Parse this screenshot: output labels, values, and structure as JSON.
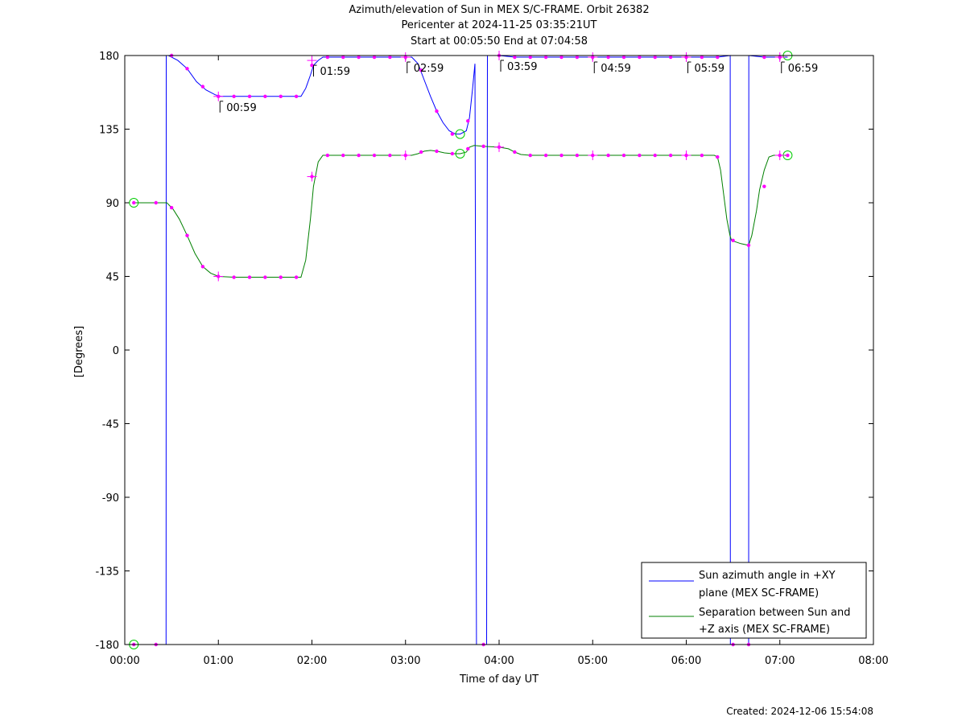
{
  "chart_data": {
    "type": "line",
    "title": "Azimuth/elevation of Sun in MEX S/C-FRAME.  Orbit 26382",
    "subtitle_1": "Pericenter at 2024-11-25 03:35:21UT",
    "subtitle_2": "Start at 00:05:50 End at 07:04:58",
    "xlabel": "Time of day UT",
    "ylabel": "[Degrees]",
    "xlim": [
      0,
      480
    ],
    "ylim": [
      -180,
      180
    ],
    "x_unit": "minutes after 00:00 UT",
    "xticks": [
      {
        "v": 0,
        "label": "00:00"
      },
      {
        "v": 60,
        "label": "01:00"
      },
      {
        "v": 120,
        "label": "02:00"
      },
      {
        "v": 180,
        "label": "03:00"
      },
      {
        "v": 240,
        "label": "04:00"
      },
      {
        "v": 300,
        "label": "05:00"
      },
      {
        "v": 360,
        "label": "06:00"
      },
      {
        "v": 420,
        "label": "07:00"
      },
      {
        "v": 480,
        "label": "08:00"
      }
    ],
    "yticks": [
      {
        "v": 180,
        "label": "180"
      },
      {
        "v": 135,
        "label": "135"
      },
      {
        "v": 90,
        "label": "90"
      },
      {
        "v": 45,
        "label": "45"
      },
      {
        "v": 0,
        "label": "0"
      },
      {
        "v": -45,
        "label": "-45"
      },
      {
        "v": -90,
        "label": "-90"
      },
      {
        "v": -135,
        "label": "-135"
      },
      {
        "v": -180,
        "label": "-180"
      }
    ],
    "legend_position": "bottom-right",
    "series": [
      {
        "name": "Sun azimuth angle in +XY plane (MEX SC-FRAME)",
        "name_line1": "Sun azimuth angle in +XY",
        "name_line2": "plane (MEX SC-FRAME)",
        "color": "#0000ff",
        "points": [
          [
            5.8,
            -180
          ],
          [
            25,
            -180
          ],
          [
            26.5,
            -180
          ],
          [
            26.6,
            180
          ],
          [
            28,
            180
          ],
          [
            34,
            177
          ],
          [
            40,
            172
          ],
          [
            46,
            164
          ],
          [
            52,
            159
          ],
          [
            58,
            156
          ],
          [
            62,
            155
          ],
          [
            70,
            155
          ],
          [
            80,
            155
          ],
          [
            90,
            155
          ],
          [
            100,
            155
          ],
          [
            110,
            155
          ],
          [
            113,
            155
          ],
          [
            116,
            160
          ],
          [
            119,
            168
          ],
          [
            121,
            174
          ],
          [
            124,
            177
          ],
          [
            127,
            179
          ],
          [
            132,
            179
          ],
          [
            140,
            179
          ],
          [
            150,
            179
          ],
          [
            160,
            179
          ],
          [
            170,
            179
          ],
          [
            180,
            179
          ],
          [
            184,
            179
          ],
          [
            188,
            175
          ],
          [
            192,
            165
          ],
          [
            196,
            155
          ],
          [
            200,
            146
          ],
          [
            204,
            139
          ],
          [
            208,
            134
          ],
          [
            212,
            132
          ],
          [
            215,
            132
          ],
          [
            219,
            134
          ],
          [
            221,
            142
          ],
          [
            223,
            160
          ],
          [
            224.5,
            175
          ],
          [
            225.5,
            -180
          ],
          [
            232,
            -180
          ],
          [
            232.5,
            180
          ],
          [
            239,
            180
          ],
          [
            240,
            180
          ],
          [
            250,
            179
          ],
          [
            260,
            179
          ],
          [
            270,
            179
          ],
          [
            280,
            179
          ],
          [
            290,
            179
          ],
          [
            300,
            179
          ],
          [
            310,
            179
          ],
          [
            320,
            179
          ],
          [
            330,
            179
          ],
          [
            340,
            179
          ],
          [
            350,
            179
          ],
          [
            360,
            179
          ],
          [
            370,
            179
          ],
          [
            378,
            179
          ],
          [
            380,
            179
          ],
          [
            388.2,
            180
          ],
          [
            388.3,
            -180
          ],
          [
            400,
            -180
          ],
          [
            400.1,
            180
          ],
          [
            410,
            179
          ],
          [
            420,
            179
          ],
          [
            425,
            179
          ]
        ],
        "markers": [
          [
            5.8,
            -180
          ],
          [
            20,
            -180
          ],
          [
            30,
            180
          ],
          [
            40,
            172
          ],
          [
            50,
            161
          ],
          [
            60,
            155
          ],
          [
            70,
            155
          ],
          [
            80,
            155
          ],
          [
            90,
            155
          ],
          [
            100,
            155
          ],
          [
            110,
            155
          ],
          [
            120,
            174
          ],
          [
            130,
            179
          ],
          [
            140,
            179
          ],
          [
            150,
            179
          ],
          [
            160,
            179
          ],
          [
            170,
            179
          ],
          [
            180,
            179
          ],
          [
            190,
            171
          ],
          [
            200,
            146
          ],
          [
            210,
            132
          ],
          [
            220,
            140
          ],
          [
            230,
            -180
          ],
          [
            240,
            180
          ],
          [
            250,
            179
          ],
          [
            260,
            179
          ],
          [
            270,
            179
          ],
          [
            280,
            179
          ],
          [
            290,
            179
          ],
          [
            300,
            179
          ],
          [
            310,
            179
          ],
          [
            320,
            179
          ],
          [
            330,
            179
          ],
          [
            340,
            179
          ],
          [
            350,
            179
          ],
          [
            360,
            179
          ],
          [
            370,
            179
          ],
          [
            380,
            179
          ],
          [
            390,
            -180
          ],
          [
            400,
            -180
          ],
          [
            410,
            179
          ],
          [
            420,
            179
          ]
        ],
        "circles": [
          [
            5.8,
            -180
          ],
          [
            215,
            132
          ],
          [
            425,
            180
          ]
        ]
      },
      {
        "name": "Separation between Sun and +Z axis (MEX SC-FRAME)",
        "name_line1": "Separation between Sun and",
        "name_line2": "+Z axis (MEX SC-FRAME)",
        "color": "#008000",
        "points": [
          [
            5.8,
            90
          ],
          [
            20,
            90
          ],
          [
            27,
            90
          ],
          [
            31,
            86
          ],
          [
            35,
            80
          ],
          [
            40,
            70
          ],
          [
            45,
            59
          ],
          [
            50,
            51
          ],
          [
            55,
            47
          ],
          [
            60,
            45
          ],
          [
            70,
            44.5
          ],
          [
            80,
            44.5
          ],
          [
            90,
            44.5
          ],
          [
            100,
            44.5
          ],
          [
            110,
            44.5
          ],
          [
            113,
            44.5
          ],
          [
            116,
            55
          ],
          [
            119,
            80
          ],
          [
            121,
            100
          ],
          [
            124,
            115
          ],
          [
            127,
            119
          ],
          [
            130,
            119
          ],
          [
            140,
            119
          ],
          [
            150,
            119
          ],
          [
            160,
            119
          ],
          [
            170,
            119
          ],
          [
            180,
            119
          ],
          [
            184,
            119
          ],
          [
            188,
            120
          ],
          [
            192,
            121.5
          ],
          [
            196,
            122
          ],
          [
            200,
            121.5
          ],
          [
            205,
            120.5
          ],
          [
            210,
            120
          ],
          [
            215,
            120
          ],
          [
            219,
            121
          ],
          [
            221,
            124
          ],
          [
            224,
            125
          ],
          [
            230,
            124.5
          ],
          [
            240,
            124
          ],
          [
            246,
            123
          ],
          [
            250,
            121
          ],
          [
            254,
            119.5
          ],
          [
            260,
            119
          ],
          [
            270,
            119
          ],
          [
            280,
            119
          ],
          [
            290,
            119
          ],
          [
            300,
            119
          ],
          [
            310,
            119
          ],
          [
            320,
            119
          ],
          [
            330,
            119
          ],
          [
            340,
            119
          ],
          [
            350,
            119
          ],
          [
            360,
            119
          ],
          [
            370,
            119
          ],
          [
            378,
            119
          ],
          [
            380,
            118
          ],
          [
            382,
            110
          ],
          [
            384,
            95
          ],
          [
            386,
            80
          ],
          [
            388,
            70
          ],
          [
            389,
            67
          ],
          [
            395,
            65
          ],
          [
            400,
            64
          ],
          [
            402,
            70
          ],
          [
            405,
            85
          ],
          [
            407,
            98
          ],
          [
            410,
            110
          ],
          [
            413,
            118
          ],
          [
            416,
            119
          ],
          [
            421,
            119
          ],
          [
            425,
            119
          ]
        ],
        "markers": [
          [
            5.8,
            90
          ],
          [
            20,
            90
          ],
          [
            30,
            87
          ],
          [
            40,
            70
          ],
          [
            50,
            51
          ],
          [
            60,
            45
          ],
          [
            70,
            44.5
          ],
          [
            80,
            44.5
          ],
          [
            90,
            44.5
          ],
          [
            100,
            44.5
          ],
          [
            110,
            44.5
          ],
          [
            120,
            106
          ],
          [
            130,
            119
          ],
          [
            140,
            119
          ],
          [
            150,
            119
          ],
          [
            160,
            119
          ],
          [
            170,
            119
          ],
          [
            180,
            119
          ],
          [
            190,
            121
          ],
          [
            200,
            121.5
          ],
          [
            210,
            120
          ],
          [
            220,
            123
          ],
          [
            230,
            124.5
          ],
          [
            240,
            124
          ],
          [
            250,
            121
          ],
          [
            260,
            119
          ],
          [
            270,
            119
          ],
          [
            280,
            119
          ],
          [
            290,
            119
          ],
          [
            300,
            119
          ],
          [
            310,
            119
          ],
          [
            320,
            119
          ],
          [
            330,
            119
          ],
          [
            340,
            119
          ],
          [
            350,
            119
          ],
          [
            360,
            119
          ],
          [
            370,
            119
          ],
          [
            380,
            118
          ],
          [
            390,
            67
          ],
          [
            400,
            64
          ],
          [
            410,
            100
          ],
          [
            420,
            119
          ],
          [
            425,
            119
          ]
        ],
        "circles": [
          [
            5.8,
            90
          ],
          [
            215,
            120
          ],
          [
            425,
            119
          ]
        ]
      }
    ],
    "hour_marks": [
      {
        "x": 60,
        "y": 155,
        "label": "00:59"
      },
      {
        "x": 120,
        "y": 177,
        "label": "01:59"
      },
      {
        "x": 180,
        "y": 179,
        "label": "02:59"
      },
      {
        "x": 240,
        "y": 180,
        "label": "03:59"
      },
      {
        "x": 300,
        "y": 179,
        "label": "04:59"
      },
      {
        "x": 360,
        "y": 179,
        "label": "05:59"
      },
      {
        "x": 420,
        "y": 179,
        "label": "06:59"
      }
    ],
    "footer": "Created: 2024-12-06 15:54:08"
  }
}
